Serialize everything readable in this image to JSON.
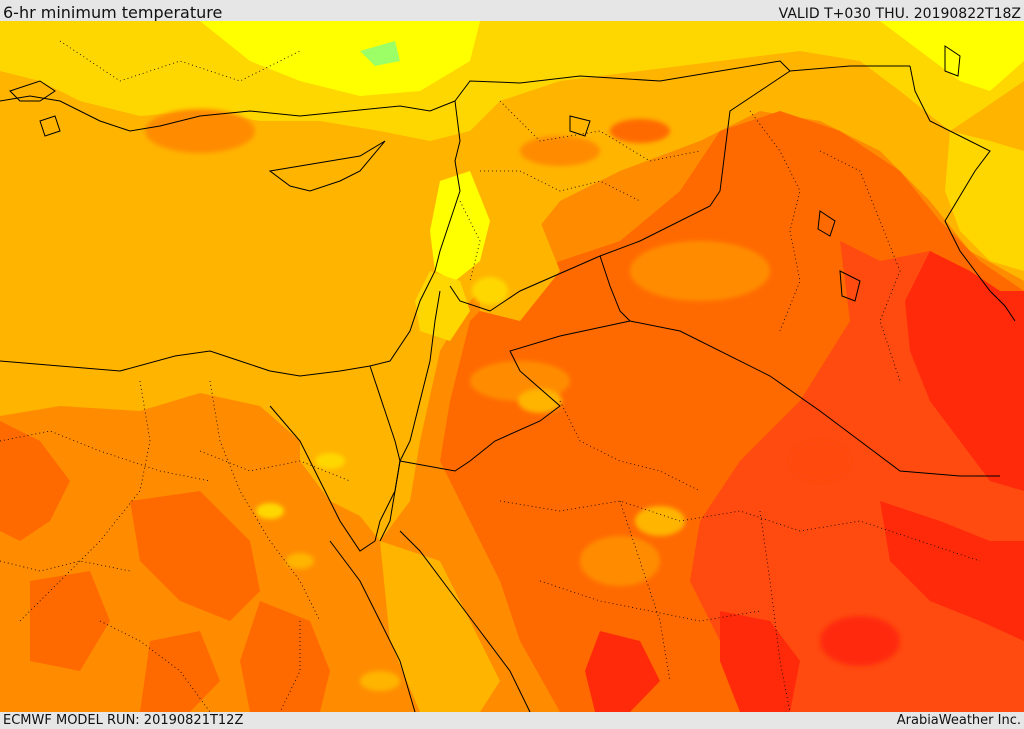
{
  "header": {
    "title": "6-hr minimum temperature",
    "valid": "VALID T+030 THU. 20190822T18Z"
  },
  "footer": {
    "model_run": "ECMWF MODEL RUN: 20190821T12Z",
    "credit": "ArabiaWeather Inc."
  },
  "palette": {
    "yellow": "#ffff00",
    "light_orange": "#ffd700",
    "gold": "#ffb400",
    "orange": "#ff8c00",
    "dark_orange": "#ff6a00",
    "red_orange": "#ff4a10",
    "red": "#ff2a0a",
    "green_tint": "#9cff66",
    "border": "#000000"
  }
}
